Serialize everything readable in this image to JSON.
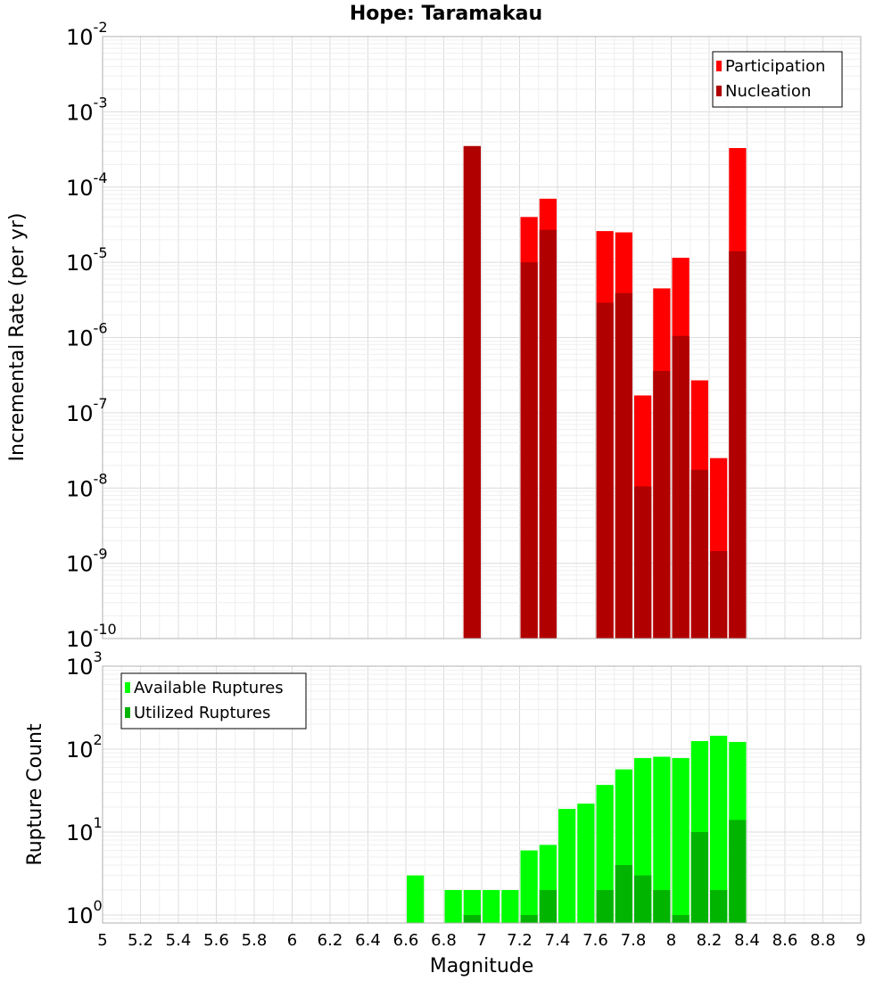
{
  "figure": {
    "title": "Hope: Taramakau",
    "xlabel": "Magnitude"
  },
  "chart_data": [
    {
      "type": "bar",
      "title": "Hope: Taramakau",
      "xlabel": "Magnitude",
      "ylabel": "Incremental Rate (per yr)",
      "yscale": "log",
      "ylim": [
        1e-10,
        0.01
      ],
      "xlim": [
        5,
        9
      ],
      "grid": true,
      "legend_position": "top-right",
      "bin_width": 0.1,
      "x": [
        6.95,
        7.25,
        7.35,
        7.65,
        7.75,
        7.85,
        7.95,
        8.05,
        8.15,
        8.25,
        8.35
      ],
      "series": [
        {
          "name": "Participation",
          "color": "#ff0000",
          "values": [
            0.00035,
            4e-05,
            7e-05,
            2.6e-05,
            2.5e-05,
            1.7e-07,
            4.5e-06,
            1.15e-05,
            2.7e-07,
            2.5e-08,
            0.00033
          ]
        },
        {
          "name": "Nucleation",
          "color": "#b00000",
          "values": [
            0.00035,
            1e-05,
            2.7e-05,
            2.9e-06,
            3.9e-06,
            1.05e-08,
            3.6e-07,
            1.05e-06,
            1.75e-08,
            1.45e-09,
            1.4e-05
          ]
        }
      ],
      "yticks": [
        "10^-10",
        "10^-9",
        "10^-8",
        "10^-7",
        "10^-6",
        "10^-5",
        "10^-4",
        "10^-3",
        "10^-2"
      ]
    },
    {
      "type": "bar",
      "xlabel": "Magnitude",
      "ylabel": "Rupture Count",
      "yscale": "log",
      "ylim": [
        0.8,
        1000
      ],
      "xlim": [
        5,
        9
      ],
      "grid": true,
      "legend_position": "top-left",
      "bin_width": 0.1,
      "x": [
        6.65,
        6.85,
        6.95,
        7.05,
        7.15,
        7.25,
        7.35,
        7.45,
        7.55,
        7.65,
        7.75,
        7.85,
        7.95,
        8.05,
        8.15,
        8.25,
        8.35
      ],
      "series": [
        {
          "name": "Available Ruptures",
          "color": "#00ff00",
          "values": [
            3,
            2,
            2,
            2,
            2,
            6,
            7,
            19,
            22,
            37,
            57,
            78,
            81,
            78,
            125,
            145,
            122
          ]
        },
        {
          "name": "Utilized Ruptures",
          "color": "#00b400",
          "values": [
            0,
            0,
            1,
            0,
            0,
            1,
            2,
            0,
            0,
            2,
            4,
            3,
            2,
            1,
            10,
            2,
            14
          ]
        }
      ],
      "yticks": [
        "10^0",
        "10^1",
        "10^2",
        "10^3"
      ]
    }
  ],
  "xticks": [
    "5",
    "5.2",
    "5.4",
    "5.6",
    "5.8",
    "6",
    "6.2",
    "6.4",
    "6.6",
    "6.8",
    "7",
    "7.2",
    "7.4",
    "7.6",
    "7.8",
    "8",
    "8.2",
    "8.4",
    "8.6",
    "8.8",
    "9"
  ]
}
